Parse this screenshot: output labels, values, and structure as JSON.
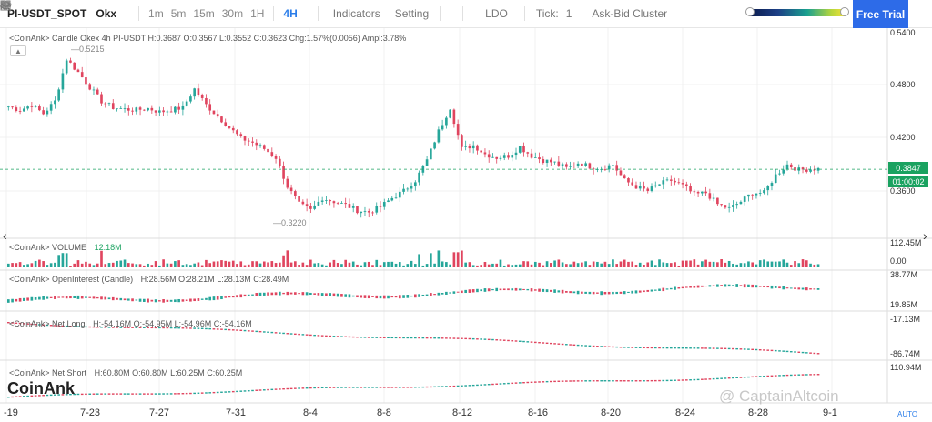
{
  "toolbar": {
    "symbol": "PI-USDT_SPOT",
    "exchange": "Okx",
    "timeframes": [
      "1m",
      "5m",
      "15m",
      "30m",
      "1H",
      "4H"
    ],
    "active_timeframe": "4H",
    "indicators_label": "Indicators",
    "setting_label": "Setting",
    "ldo_label": "LDO",
    "tick_label": "Tick:",
    "tick_value": "1",
    "cluster_label": "Ask-Bid Cluster",
    "free_trial_label": "Free Trial"
  },
  "candle_pane": {
    "title": "<CoinAnk> Candle",
    "info": "Okex 4h PI-USDT",
    "h": "H:0.3687",
    "o": "O:0.3567",
    "l": "L:0.3552",
    "c": "C:0.3623",
    "chg": "Chg:1.57%(0.0056)",
    "ampl": "Ampl:3.78%",
    "high_marker": "0.5215",
    "low_marker": "0.3220",
    "price_axis": [
      "0.5400",
      "0.4800",
      "0.4200",
      "0.3600"
    ],
    "current_price": "0.3847",
    "countdown": "01:00:02"
  },
  "volume_pane": {
    "title": "<CoinAnk> VOLUME",
    "value": "12.18M",
    "axis": [
      "112.45M",
      "0.00"
    ]
  },
  "oi_pane": {
    "title": "<CoinAnk> OpenInterest (Candle)",
    "h": "H:28.56M",
    "o": "O:28.21M",
    "l": "L:28.13M",
    "c": "C:28.49M",
    "axis": [
      "38.77M",
      "19.85M"
    ]
  },
  "netlong_pane": {
    "title": "<CoinAnk> Net Long",
    "h": "H:-54.16M",
    "o": "O:-54.95M",
    "l": "L:-54.96M",
    "c": "C:-54.16M",
    "axis": [
      "-17.13M",
      "-86.74M"
    ]
  },
  "netshort_pane": {
    "title": "<CoinAnk> Net Short",
    "h": "H:60.80M",
    "o": "O:60.80M",
    "l": "L:60.25M",
    "c": "C:60.25M",
    "axis": [
      "110.94M"
    ]
  },
  "x_axis": [
    "-19",
    "7-23",
    "7-27",
    "7-31",
    "8-4",
    "8-8",
    "8-12",
    "8-16",
    "8-20",
    "8-24",
    "8-28",
    "9-1"
  ],
  "branding": {
    "logo": "CoinAnk",
    "watermark": "@ CaptainAltcoin",
    "auto": "AUTO"
  },
  "colors": {
    "up": "#26a69a",
    "down": "#e0455f",
    "accent": "#2d6be8",
    "price_tag": "#1aa260"
  },
  "price_series": [
    0.456,
    0.452,
    0.458,
    0.448,
    0.462,
    0.51,
    0.495,
    0.478,
    0.462,
    0.455,
    0.453,
    0.452,
    0.454,
    0.45,
    0.452,
    0.455,
    0.476,
    0.458,
    0.445,
    0.432,
    0.42,
    0.415,
    0.408,
    0.398,
    0.365,
    0.345,
    0.338,
    0.352,
    0.348,
    0.344,
    0.338,
    0.336,
    0.342,
    0.352,
    0.36,
    0.372,
    0.395,
    0.428,
    0.455,
    0.408,
    0.412,
    0.402,
    0.398,
    0.4,
    0.41,
    0.4,
    0.395,
    0.392,
    0.386,
    0.392,
    0.388,
    0.386,
    0.39,
    0.372,
    0.365,
    0.36,
    0.368,
    0.372,
    0.366,
    0.356,
    0.358,
    0.345,
    0.34,
    0.348,
    0.358,
    0.358,
    0.378,
    0.39,
    0.384,
    0.385
  ]
}
